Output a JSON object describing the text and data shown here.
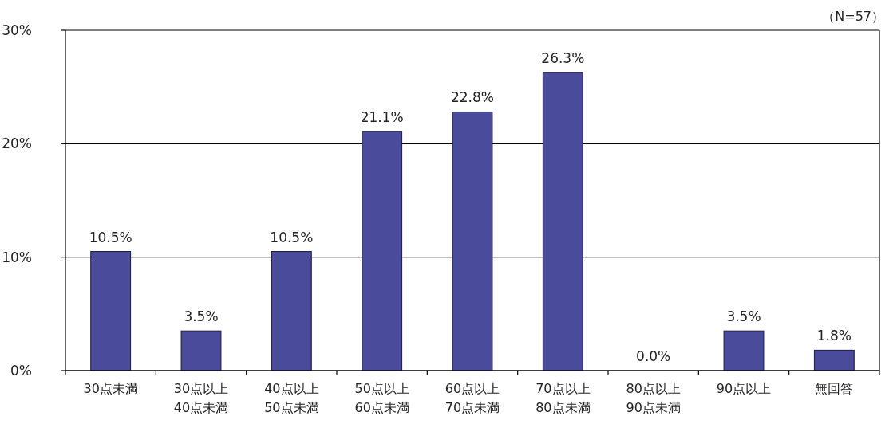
{
  "chart_data": {
    "type": "bar",
    "categories": [
      "30点未満",
      "30点以上\n40点未満",
      "40点以上\n50点未満",
      "50点以上\n60点未満",
      "60点以上\n70点未満",
      "70点以上\n80点未満",
      "80点以上\n90点未満",
      "90点以上",
      "無回答"
    ],
    "values": [
      10.5,
      3.5,
      10.5,
      21.1,
      22.8,
      26.3,
      0.0,
      3.5,
      1.8
    ],
    "value_labels": [
      "10.5%",
      "3.5%",
      "10.5%",
      "21.1%",
      "22.8%",
      "26.3%",
      "0.0%",
      "3.5%",
      "1.8%"
    ],
    "color": "#4b4b9c",
    "ylim": [
      0,
      30
    ],
    "yticks": [
      {
        "value": 0,
        "label": "0%"
      },
      {
        "value": 10,
        "label": "10%"
      },
      {
        "value": 20,
        "label": "20%"
      },
      {
        "value": 30,
        "label": "30%"
      }
    ],
    "grid": "y",
    "annotations": [
      "（N=57）"
    ]
  }
}
